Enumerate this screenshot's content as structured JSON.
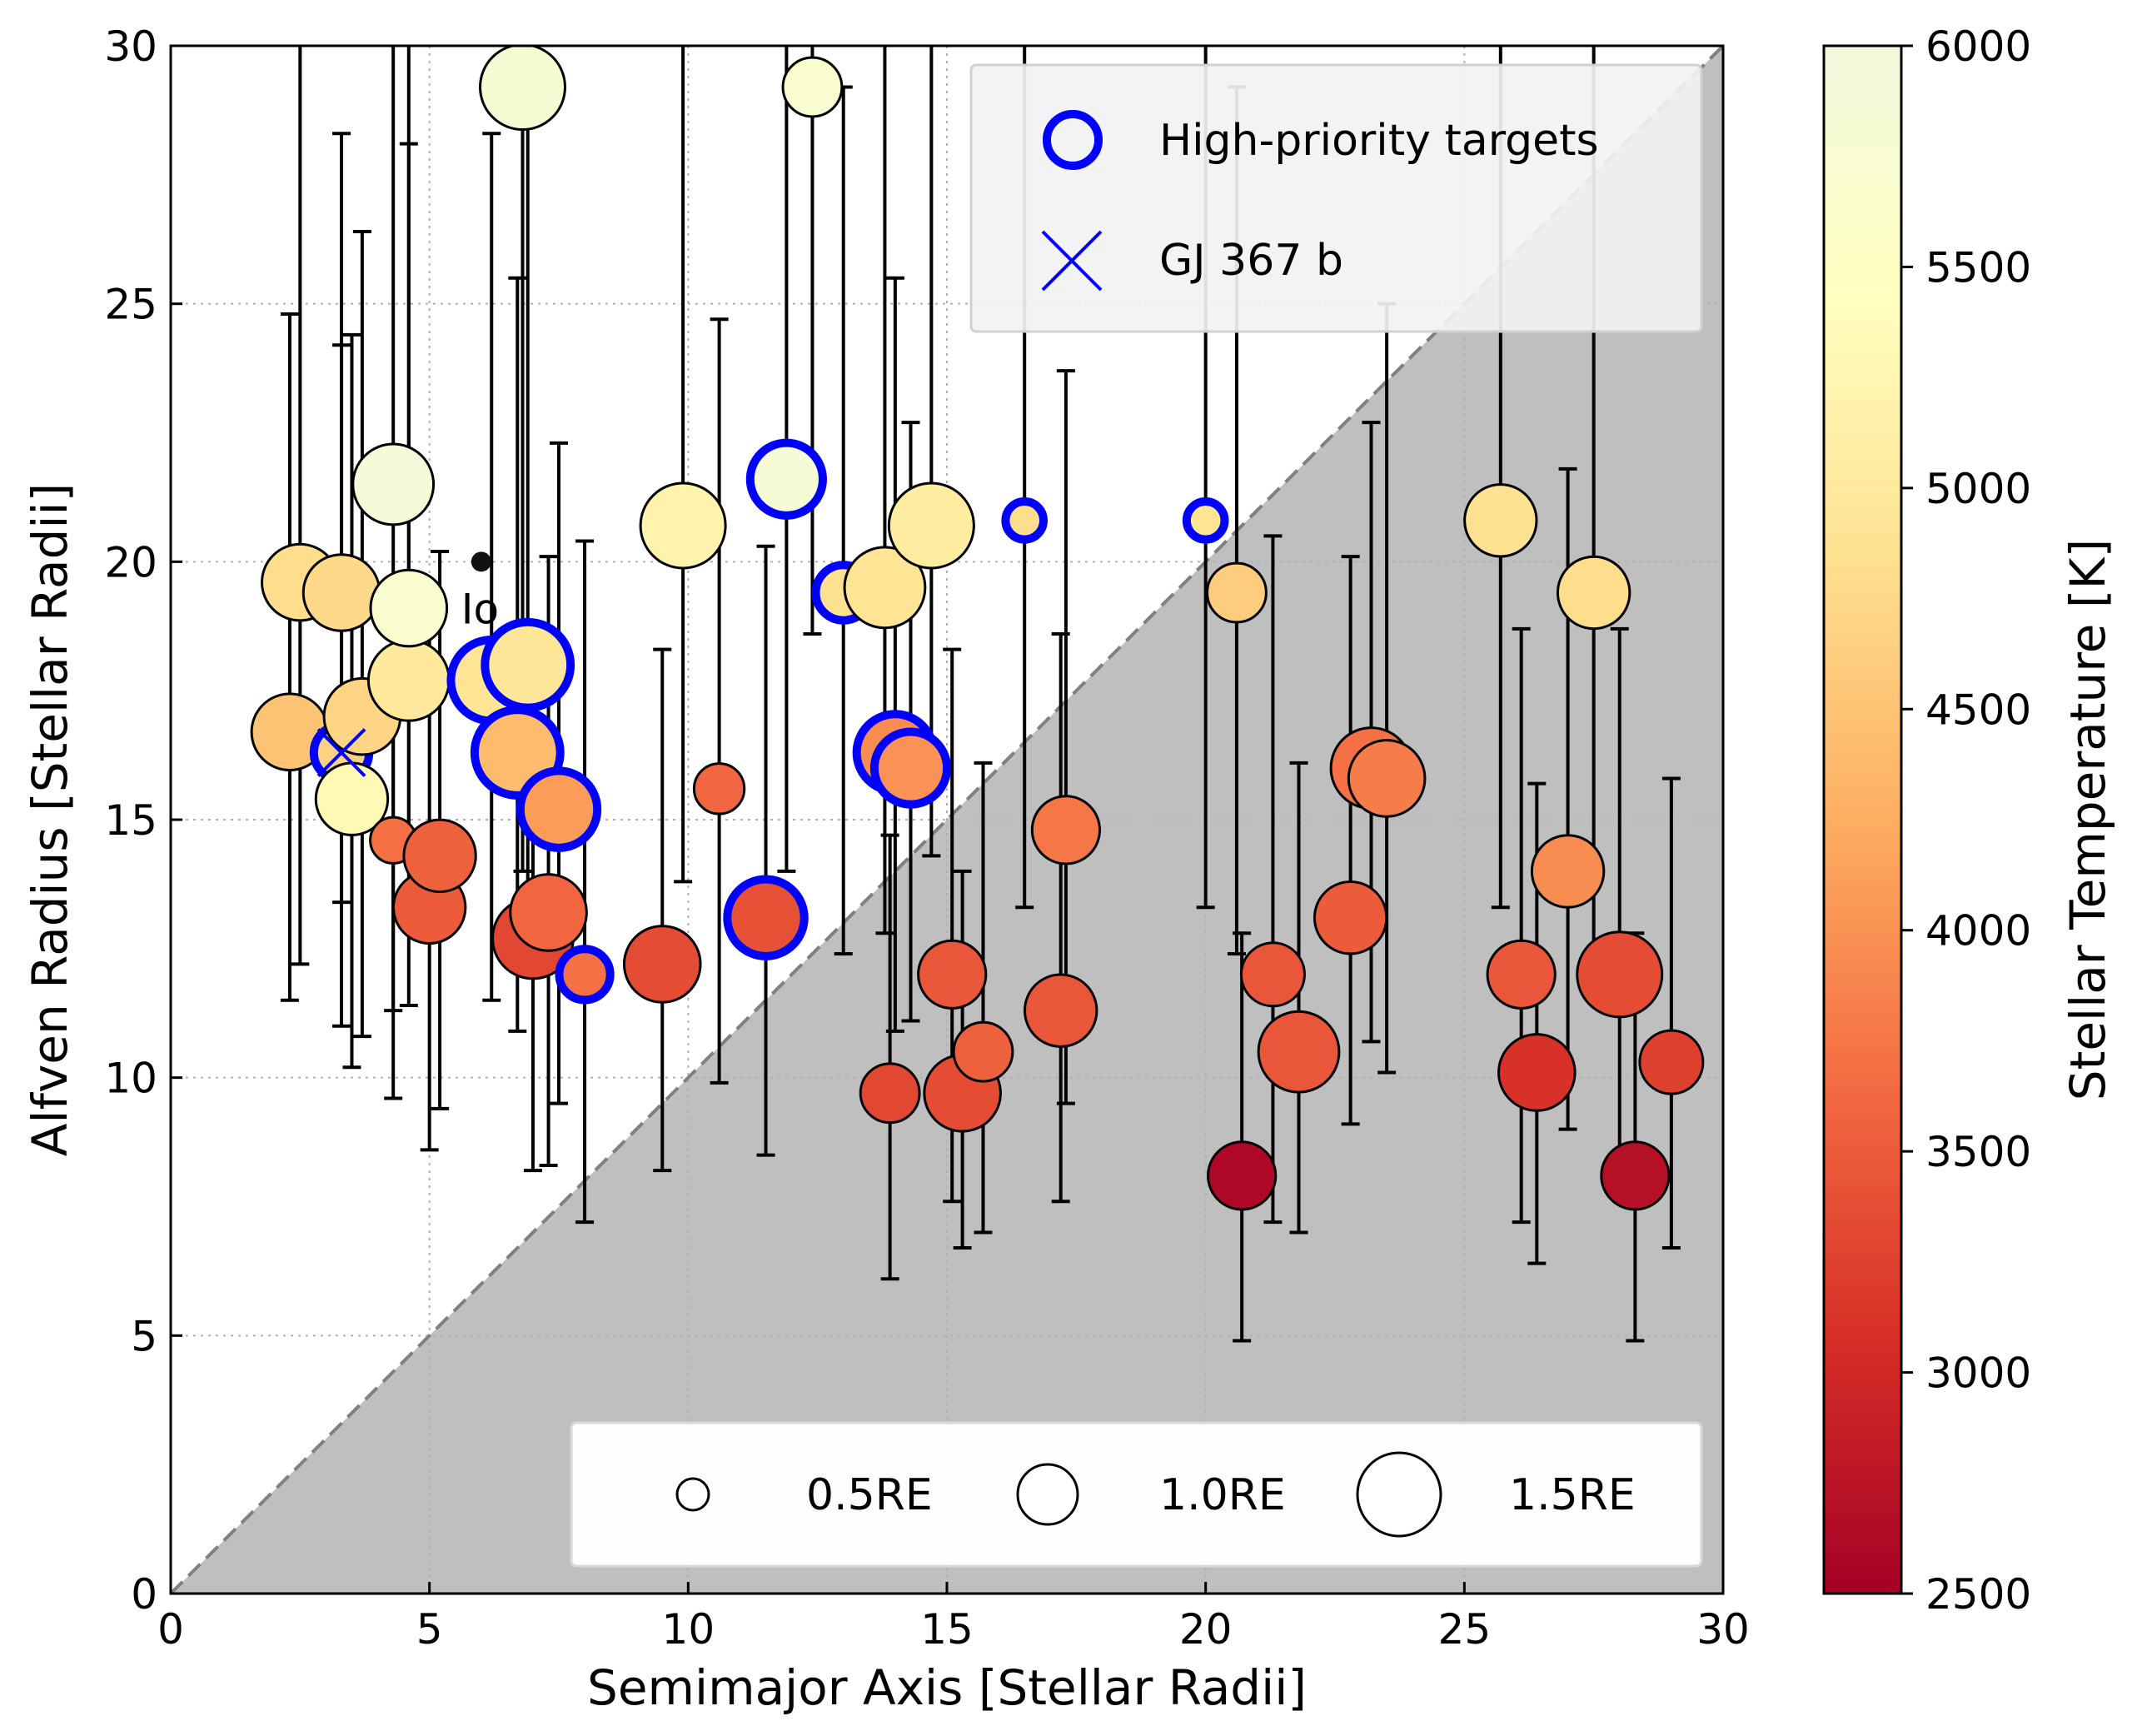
{
  "chart_data": {
    "type": "scatter",
    "xlabel": "Semimajor Axis [Stellar Radii]",
    "ylabel": "Alfven Radius [Stellar Radii]",
    "xlim": [
      0,
      30
    ],
    "ylim": [
      0,
      30
    ],
    "x_ticks": [
      "0",
      "5",
      "10",
      "15",
      "20",
      "25",
      "30"
    ],
    "y_ticks": [
      "0",
      "5",
      "10",
      "15",
      "20",
      "25",
      "30"
    ],
    "grid": true,
    "shaded_region": "below y = x (shaded gray, dashed diagonal)",
    "colorbar": {
      "label": "Stellar Temperature [K]",
      "range": [
        2500,
        6000
      ],
      "ticks": [
        "2500",
        "3000",
        "3500",
        "4000",
        "4500",
        "5000",
        "5500",
        "6000"
      ],
      "colors": [
        "#a50026",
        "#d73027",
        "#f46d43",
        "#fdae61",
        "#fee090",
        "#ffffbf",
        "#f3f9de"
      ]
    },
    "legend": {
      "high_priority_label": "High-priority targets",
      "gj367_label": "GJ 367 b",
      "size_labels": [
        "0.5RE",
        "1.0RE",
        "1.5RE"
      ],
      "size_values": [
        0.5,
        1.0,
        1.5
      ]
    },
    "annotation": {
      "label": "Io",
      "x": 6.0,
      "y": 20.0
    },
    "points": [
      {
        "x": 2.3,
        "y": 16.7,
        "lo": 11.5,
        "hi": 24.8,
        "r": 1.3,
        "temp": 4500,
        "hp": false
      },
      {
        "x": 2.5,
        "y": 19.6,
        "lo": 12.2,
        "hi": 30,
        "r": 1.3,
        "temp": 4800,
        "hp": false
      },
      {
        "x": 3.3,
        "y": 19.4,
        "lo": 11.0,
        "hi": 24.2,
        "r": 1.3,
        "temp": 4750,
        "hp": false
      },
      {
        "x": 3.3,
        "y": 16.3,
        "lo": 13.4,
        "hi": 28.3,
        "r": 0.7,
        "temp": 4650,
        "hp": true
      },
      {
        "x": 3.5,
        "y": 15.4,
        "lo": 10.2,
        "hi": 24.4,
        "r": 1.2,
        "temp": 5300,
        "hp": false
      },
      {
        "x": 3.7,
        "y": 17.0,
        "lo": 10.8,
        "hi": 26.4,
        "r": 1.3,
        "temp": 4700,
        "hp": false
      },
      {
        "x": 4.3,
        "y": 21.5,
        "lo": 9.6,
        "hi": 30,
        "r": 1.4,
        "temp": 5900,
        "hp": false
      },
      {
        "x": 4.3,
        "y": 14.6,
        "lo": 11.3,
        "hi": 18.0,
        "r": 0.6,
        "temp": 3700,
        "hp": false
      },
      {
        "x": 4.6,
        "y": 17.7,
        "lo": 11.4,
        "hi": 28.1,
        "r": 1.4,
        "temp": 5000,
        "hp": false
      },
      {
        "x": 4.6,
        "y": 19.1,
        "lo": 14.4,
        "hi": 30,
        "r": 1.3,
        "temp": 5700,
        "hp": false
      },
      {
        "x": 5.0,
        "y": 13.3,
        "lo": 8.6,
        "hi": 19.5,
        "r": 1.2,
        "temp": 3500,
        "hp": false
      },
      {
        "x": 5.2,
        "y": 14.3,
        "lo": 9.4,
        "hi": 20.2,
        "r": 1.2,
        "temp": 3550,
        "hp": false
      },
      {
        "x": 6.2,
        "y": 17.7,
        "lo": 11.5,
        "hi": 28.3,
        "r": 1.3,
        "temp": 4900,
        "hp": true
      },
      {
        "x": 6.8,
        "y": 29.2,
        "lo": 14.0,
        "hi": 30,
        "r": 1.5,
        "temp": 5800,
        "hp": false
      },
      {
        "x": 6.7,
        "y": 16.3,
        "lo": 10.9,
        "hi": 25.5,
        "r": 1.4,
        "temp": 4400,
        "hp": true
      },
      {
        "x": 6.9,
        "y": 18.0,
        "lo": 12.0,
        "hi": 30,
        "r": 1.4,
        "temp": 4950,
        "hp": true
      },
      {
        "x": 7.0,
        "y": 12.7,
        "lo": 8.2,
        "hi": 18.5,
        "r": 1.4,
        "temp": 3300,
        "hp": false
      },
      {
        "x": 7.3,
        "y": 13.2,
        "lo": 8.3,
        "hi": 20.1,
        "r": 1.3,
        "temp": 3600,
        "hp": false
      },
      {
        "x": 7.5,
        "y": 15.2,
        "lo": 9.5,
        "hi": 22.3,
        "r": 1.2,
        "temp": 4100,
        "hp": true
      },
      {
        "x": 8.0,
        "y": 12.0,
        "lo": 7.2,
        "hi": 20.4,
        "r": 0.6,
        "temp": 3700,
        "hp": true
      },
      {
        "x": 9.5,
        "y": 12.2,
        "lo": 8.2,
        "hi": 18.3,
        "r": 1.3,
        "temp": 3350,
        "hp": false
      },
      {
        "x": 9.9,
        "y": 20.7,
        "lo": 13.8,
        "hi": 30,
        "r": 1.5,
        "temp": 5200,
        "hp": false
      },
      {
        "x": 10.6,
        "y": 15.6,
        "lo": 9.9,
        "hi": 24.7,
        "r": 0.7,
        "temp": 3600,
        "hp": false
      },
      {
        "x": 11.5,
        "y": 13.1,
        "lo": 8.5,
        "hi": 20.3,
        "r": 1.2,
        "temp": 3400,
        "hp": true
      },
      {
        "x": 11.9,
        "y": 21.6,
        "lo": 14.0,
        "hi": 30,
        "r": 1.1,
        "temp": 5850,
        "hp": true
      },
      {
        "x": 12.4,
        "y": 29.2,
        "lo": 18.6,
        "hi": 30,
        "r": 0.9,
        "temp": 5700,
        "hp": false
      },
      {
        "x": 13.0,
        "y": 19.4,
        "lo": 12.4,
        "hi": 29.2,
        "r": 0.7,
        "temp": 4850,
        "hp": true
      },
      {
        "x": 13.8,
        "y": 19.5,
        "lo": 12.8,
        "hi": 30,
        "r": 1.4,
        "temp": 4900,
        "hp": false
      },
      {
        "x": 13.9,
        "y": 9.7,
        "lo": 6.1,
        "hi": 14.7,
        "r": 0.9,
        "temp": 3300,
        "hp": false
      },
      {
        "x": 14.0,
        "y": 16.3,
        "lo": 10.9,
        "hi": 25.5,
        "r": 1.2,
        "temp": 3950,
        "hp": true
      },
      {
        "x": 14.3,
        "y": 16.0,
        "lo": 11.1,
        "hi": 22.7,
        "r": 1.1,
        "temp": 4000,
        "hp": true
      },
      {
        "x": 14.7,
        "y": 20.7,
        "lo": 14.3,
        "hi": 30,
        "r": 1.5,
        "temp": 5050,
        "hp": false
      },
      {
        "x": 15.1,
        "y": 12.0,
        "lo": 7.6,
        "hi": 18.3,
        "r": 1.1,
        "temp": 3450,
        "hp": false
      },
      {
        "x": 15.3,
        "y": 9.7,
        "lo": 6.7,
        "hi": 14.0,
        "r": 1.3,
        "temp": 3350,
        "hp": false
      },
      {
        "x": 15.7,
        "y": 10.5,
        "lo": 7.0,
        "hi": 16.1,
        "r": 0.9,
        "temp": 3550,
        "hp": false
      },
      {
        "x": 16.5,
        "y": 20.8,
        "lo": 13.3,
        "hi": 30,
        "r": 0.3,
        "temp": 4800,
        "hp": true
      },
      {
        "x": 17.2,
        "y": 11.3,
        "lo": 7.6,
        "hi": 18.6,
        "r": 1.2,
        "temp": 3450,
        "hp": false
      },
      {
        "x": 17.3,
        "y": 14.8,
        "lo": 9.5,
        "hi": 23.7,
        "r": 1.1,
        "temp": 3750,
        "hp": false
      },
      {
        "x": 20.0,
        "y": 20.8,
        "lo": 13.3,
        "hi": 30,
        "r": 0.3,
        "temp": 4900,
        "hp": true
      },
      {
        "x": 20.6,
        "y": 19.4,
        "lo": 12.4,
        "hi": 29.2,
        "r": 0.9,
        "temp": 4600,
        "hp": false
      },
      {
        "x": 20.7,
        "y": 8.1,
        "lo": 4.9,
        "hi": 12.8,
        "r": 1.1,
        "temp": 2600,
        "hp": false
      },
      {
        "x": 21.3,
        "y": 12.0,
        "lo": 7.2,
        "hi": 20.5,
        "r": 1.0,
        "temp": 3450,
        "hp": false
      },
      {
        "x": 21.8,
        "y": 10.5,
        "lo": 7.0,
        "hi": 16.1,
        "r": 1.4,
        "temp": 3450,
        "hp": false
      },
      {
        "x": 22.8,
        "y": 13.1,
        "lo": 9.1,
        "hi": 20.1,
        "r": 1.2,
        "temp": 3500,
        "hp": false
      },
      {
        "x": 23.2,
        "y": 16.0,
        "lo": 10.7,
        "hi": 22.7,
        "r": 1.4,
        "temp": 3700,
        "hp": false
      },
      {
        "x": 23.5,
        "y": 15.8,
        "lo": 10.1,
        "hi": 25.0,
        "r": 1.3,
        "temp": 3800,
        "hp": false
      },
      {
        "x": 25.7,
        "y": 20.8,
        "lo": 13.3,
        "hi": 30,
        "r": 1.2,
        "temp": 4850,
        "hp": false
      },
      {
        "x": 26.1,
        "y": 12.0,
        "lo": 7.2,
        "hi": 18.7,
        "r": 1.1,
        "temp": 3450,
        "hp": false
      },
      {
        "x": 26.4,
        "y": 10.1,
        "lo": 6.4,
        "hi": 15.7,
        "r": 1.3,
        "temp": 3100,
        "hp": false
      },
      {
        "x": 27.0,
        "y": 14.0,
        "lo": 9.0,
        "hi": 21.8,
        "r": 1.2,
        "temp": 3950,
        "hp": false
      },
      {
        "x": 27.5,
        "y": 19.4,
        "lo": 12.4,
        "hi": 30,
        "r": 1.2,
        "temp": 4800,
        "hp": false
      },
      {
        "x": 28.0,
        "y": 12.0,
        "lo": 8.0,
        "hi": 18.7,
        "r": 1.5,
        "temp": 3350,
        "hp": false
      },
      {
        "x": 28.3,
        "y": 8.1,
        "lo": 4.9,
        "hi": 12.8,
        "r": 1.1,
        "temp": 2700,
        "hp": false
      },
      {
        "x": 29.0,
        "y": 10.3,
        "lo": 6.7,
        "hi": 15.8,
        "r": 1.0,
        "temp": 3250,
        "hp": false
      }
    ]
  }
}
